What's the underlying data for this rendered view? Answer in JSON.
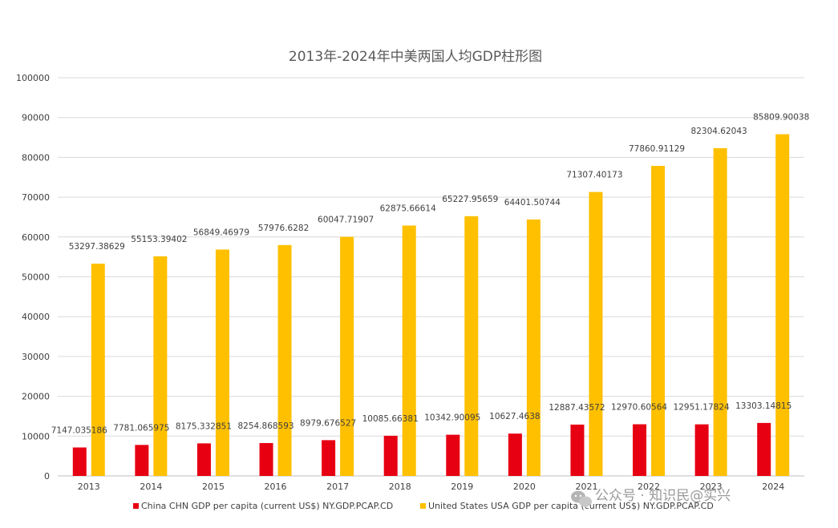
{
  "chart_data": {
    "type": "bar",
    "title": "2013年-2024年中美两国人均GDP柱形图",
    "xlabel": "",
    "ylabel": "",
    "ylim": [
      0,
      100000
    ],
    "yticks": [
      "0",
      "10000",
      "20000",
      "30000",
      "40000",
      "50000",
      "60000",
      "70000",
      "80000",
      "90000",
      "100000"
    ],
    "grid": true,
    "legend_position": "bottom",
    "categories": [
      "2013",
      "2014",
      "2015",
      "2016",
      "2017",
      "2018",
      "2019",
      "2020",
      "2021",
      "2022",
      "2023",
      "2024"
    ],
    "series": [
      {
        "name": "China CHN GDP per capita (current US$) NY.GDP.PCAP.CD",
        "color": "#e60012",
        "values": [
          7147.035186,
          7781.065975,
          8175.332851,
          8254.868593,
          8979.676527,
          10085.66381,
          10342.90095,
          10627.4638,
          12887.43572,
          12970.60564,
          12951.17824,
          13303.14815
        ],
        "labels": [
          "7147.035186",
          "7781.065975",
          "8175.332851",
          "8254.868593",
          "8979.676527",
          "10085.66381",
          "10342.90095",
          "10627.4638",
          "12887.43572",
          "12970.60564",
          "12951.17824",
          "13303.14815"
        ]
      },
      {
        "name": "United States USA GDP per capita (current US$) NY.GDP.PCAP.CD",
        "color": "#ffc000",
        "values": [
          53297.38629,
          55153.39402,
          56849.46979,
          57976.6282,
          60047.71907,
          62875.66614,
          65227.95659,
          64401.50744,
          71307.40173,
          77860.91129,
          82304.62043,
          85809.90038
        ],
        "labels": [
          "53297.38629",
          "55153.39402",
          "56849.46979",
          "57976.6282",
          "60047.71907",
          "62875.66614",
          "65227.95659",
          "64401.50744",
          "71307.40173",
          "77860.91129",
          "82304.62043",
          "85809.90038"
        ]
      }
    ]
  },
  "watermark": {
    "text": "公众号 · 知识民@实兴",
    "icon": "wechat-icon"
  }
}
